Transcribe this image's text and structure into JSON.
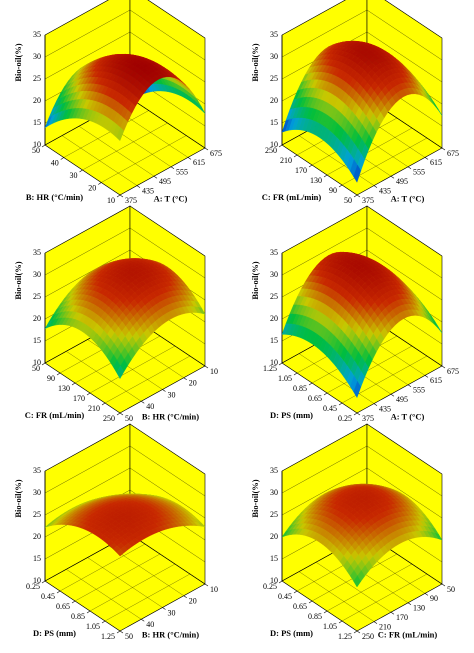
{
  "chart_data": [
    {
      "type": "surface",
      "zlabel": "Bio-oil(%)",
      "xlabel": "A: T (°C)",
      "ylabel": "B: HR (°C/min)",
      "xlim": [
        375,
        675
      ],
      "xticks": [
        375,
        435,
        495,
        555,
        615,
        675
      ],
      "ylim": [
        10,
        50
      ],
      "yticks": [
        10,
        20,
        30,
        40,
        50
      ],
      "zlim": [
        10,
        35
      ],
      "zticks": [
        10,
        15,
        20,
        25,
        30,
        35
      ]
    },
    {
      "type": "surface",
      "zlabel": "Bio-oil(%)",
      "xlabel": "A: T (°C)",
      "ylabel": "C: FR (mL/min)",
      "xlim": [
        375,
        675
      ],
      "xticks": [
        375,
        435,
        495,
        555,
        615,
        675
      ],
      "ylim": [
        50,
        250
      ],
      "yticks": [
        50,
        90,
        130,
        170,
        210,
        250
      ],
      "zlim": [
        10,
        35
      ],
      "zticks": [
        10,
        15,
        20,
        25,
        30,
        35
      ]
    },
    {
      "type": "surface",
      "zlabel": "Bio-oil(%)",
      "xlabel": "B: HR (°C/min)",
      "ylabel": "C: FR (mL/min)",
      "xlim": [
        50,
        10
      ],
      "xticks": [
        10,
        20,
        30,
        40,
        50
      ],
      "ylim": [
        250,
        50
      ],
      "yticks": [
        50,
        90,
        130,
        170,
        210,
        250
      ],
      "zlim": [
        10,
        35
      ],
      "zticks": [
        10,
        15,
        20,
        25,
        30,
        35
      ]
    },
    {
      "type": "surface",
      "zlabel": "Bio-oil(%)",
      "xlabel": "A: T (°C)",
      "ylabel": "D: PS (mm)",
      "xlim": [
        375,
        675
      ],
      "xticks": [
        375,
        435,
        495,
        555,
        615,
        675
      ],
      "ylim": [
        0.25,
        1.25
      ],
      "yticks": [
        0.25,
        0.45,
        0.65,
        0.85,
        1.05,
        1.25
      ],
      "zlim": [
        10,
        35
      ],
      "zticks": [
        10,
        15,
        20,
        25,
        30,
        35
      ]
    },
    {
      "type": "surface",
      "zlabel": "Bio-oil(%)",
      "xlabel": "B: HR (°C/min)",
      "ylabel": "D: PS (mm)",
      "xlim": [
        50,
        10
      ],
      "xticks": [
        10,
        20,
        30,
        40,
        50
      ],
      "ylim": [
        1.25,
        0.25
      ],
      "yticks": [
        0.25,
        0.45,
        0.65,
        0.85,
        1.05,
        1.25
      ],
      "zlim": [
        10,
        35
      ],
      "zticks": [
        10,
        15,
        20,
        25,
        30,
        35
      ]
    },
    {
      "type": "surface",
      "zlabel": "Bio-oil(%)",
      "xlabel": "C: FR (mL/min)",
      "ylabel": "D: PS (mm)",
      "xlim": [
        250,
        50
      ],
      "xticks": [
        50,
        90,
        130,
        170,
        210,
        250
      ],
      "ylim": [
        1.25,
        0.25
      ],
      "yticks": [
        0.25,
        0.45,
        0.65,
        0.85,
        1.05,
        1.25
      ],
      "zlim": [
        10,
        35
      ],
      "zticks": [
        10,
        15,
        20,
        25,
        30,
        35
      ]
    }
  ]
}
